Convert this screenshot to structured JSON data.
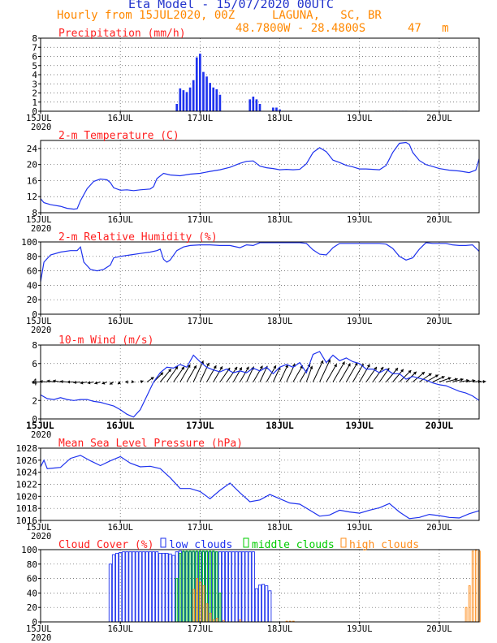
{
  "header": {
    "title": "Eta Model - 15/07/2020 00UTC",
    "subtitle": "Hourly from 15JUL2020, 00Z",
    "location": "LAGUNA,   SC, BR",
    "coords": "48.7800W - 28.4800S",
    "elevation": "47   m",
    "title_color": "#2233cc",
    "subtitle_color": "#ff8800"
  },
  "x_axis": {
    "days": [
      "15JUL",
      "16JUL",
      "17JUL",
      "18JUL",
      "19JUL",
      "20JUL"
    ],
    "year": "2020",
    "range_hours": [
      0,
      132
    ]
  },
  "colors": {
    "blue": "#1e32ee",
    "red": "#ff2020",
    "green": "#00cc00",
    "orange": "#ff8c1a",
    "black": "#000000"
  },
  "chart_data": [
    {
      "type": "bar",
      "title": "Precipitation (mm/h)",
      "ylim": [
        0,
        8
      ],
      "yticks": [
        0,
        1,
        2,
        3,
        4,
        5,
        6,
        7,
        8
      ],
      "x": [
        41,
        42,
        43,
        44,
        45,
        46,
        47,
        48,
        49,
        50,
        51,
        52,
        53,
        54,
        63,
        64,
        65,
        66,
        70,
        71,
        72,
        101,
        102,
        103,
        104,
        105,
        106,
        107,
        108,
        109,
        110
      ],
      "values": [
        0.8,
        2.5,
        2.3,
        2.1,
        2.6,
        3.4,
        5.9,
        6.3,
        4.3,
        3.8,
        3.1,
        2.6,
        2.4,
        1.8,
        1.3,
        1.6,
        1.3,
        0.8,
        0.4,
        0.4,
        0.2,
        0.05,
        0.05,
        0.05,
        0.05,
        0.05,
        0.05,
        0.05,
        0.05,
        0.05,
        0.05
      ]
    },
    {
      "type": "line",
      "title": "2-m Temperature (C)",
      "ylim": [
        8,
        26
      ],
      "yticks": [
        8,
        12,
        16,
        20,
        24
      ],
      "x": [
        0,
        1,
        3,
        6,
        8,
        10,
        11,
        12,
        14,
        16,
        18,
        20,
        21,
        22,
        24,
        26,
        28,
        30,
        33,
        34,
        35,
        37,
        39,
        42,
        45,
        48,
        51,
        54,
        57,
        60,
        62,
        64,
        66,
        68,
        70,
        72,
        74,
        76,
        78,
        80,
        82,
        84,
        86,
        88,
        90,
        92,
        94,
        96,
        98,
        100,
        102,
        104,
        106,
        108,
        110,
        111,
        112,
        114,
        116,
        118,
        120,
        123,
        126,
        129,
        131,
        132
      ],
      "values": [
        11.5,
        10.5,
        10,
        9.6,
        9.1,
        8.9,
        9.0,
        11,
        14,
        15.8,
        16.4,
        16.2,
        15.5,
        14.2,
        13.6,
        13.7,
        13.5,
        13.7,
        13.9,
        14.5,
        16.5,
        17.8,
        17.4,
        17.2,
        17.6,
        17.8,
        18.3,
        18.7,
        19.3,
        20.3,
        20.8,
        20.9,
        19.6,
        19.2,
        19.0,
        18.7,
        18.8,
        18.7,
        18.8,
        20.2,
        23.0,
        24.2,
        23.2,
        21.1,
        20.5,
        19.8,
        19.4,
        18.9,
        18.9,
        18.8,
        18.7,
        19.8,
        23.0,
        25.3,
        25.5,
        25.0,
        23.0,
        21.0,
        20.0,
        19.5,
        19.0,
        18.6,
        18.4,
        18.0,
        18.6,
        21.4
      ]
    },
    {
      "type": "line",
      "title": "2-m Relative Humidity (%)",
      "ylim": [
        0,
        100
      ],
      "yticks": [
        0,
        20,
        40,
        60,
        80,
        100
      ],
      "x": [
        0,
        1,
        3,
        6,
        9,
        11,
        12,
        13,
        15,
        17,
        19,
        21,
        22,
        24,
        27,
        30,
        33,
        35,
        36,
        37,
        38,
        39,
        41,
        43,
        45,
        48,
        51,
        54,
        57,
        60,
        62,
        64,
        66,
        68,
        70,
        72,
        74,
        76,
        78,
        80,
        82,
        84,
        86,
        88,
        90,
        92,
        94,
        96,
        98,
        100,
        102,
        104,
        106,
        108,
        110,
        112,
        114,
        116,
        118,
        120,
        122,
        124,
        126,
        128,
        130,
        132
      ],
      "values": [
        45,
        72,
        82,
        86,
        88,
        88,
        93,
        72,
        62,
        60,
        62,
        68,
        78,
        80,
        82,
        84,
        86,
        88,
        90,
        76,
        72,
        75,
        88,
        93,
        95,
        96,
        96,
        95,
        95,
        92,
        96,
        95,
        99,
        99,
        99,
        99,
        99,
        99,
        99,
        98,
        89,
        83,
        82,
        92,
        98,
        98,
        98,
        98,
        98,
        98,
        98,
        97,
        91,
        80,
        75,
        78,
        90,
        99,
        98,
        98,
        98,
        96,
        95,
        95,
        96,
        87
      ]
    },
    {
      "type": "line",
      "title": "10-m Wind (m/s)",
      "ylim": [
        0,
        8
      ],
      "yticks": [
        0,
        2,
        4,
        6,
        8
      ],
      "x": [
        0,
        2,
        4,
        6,
        8,
        10,
        12,
        14,
        16,
        18,
        20,
        22,
        24,
        26,
        28,
        30,
        32,
        34,
        36,
        38,
        40,
        42,
        44,
        46,
        48,
        50,
        52,
        54,
        56,
        58,
        60,
        62,
        64,
        66,
        68,
        70,
        72,
        74,
        76,
        78,
        80,
        82,
        84,
        86,
        88,
        90,
        92,
        94,
        96,
        98,
        100,
        102,
        104,
        106,
        108,
        110,
        112,
        114,
        116,
        118,
        120,
        122,
        124,
        126,
        128,
        130,
        132
      ],
      "values": [
        2.6,
        2.2,
        2.1,
        2.3,
        2.1,
        2.0,
        2.1,
        2.1,
        1.9,
        1.8,
        1.6,
        1.4,
        1.0,
        0.5,
        0.2,
        1.0,
        2.5,
        4.0,
        5.0,
        5.6,
        5.5,
        5.9,
        5.6,
        6.9,
        6.2,
        5.6,
        5.3,
        5.1,
        5.4,
        5.0,
        5.2,
        5.0,
        5.5,
        5.2,
        5.6,
        4.9,
        5.6,
        5.9,
        5.6,
        6.1,
        5.0,
        7.0,
        7.3,
        6.1,
        6.9,
        6.3,
        6.6,
        6.2,
        6.0,
        5.4,
        5.4,
        5.0,
        5.4,
        4.9,
        4.9,
        4.3,
        4.6,
        4.4,
        4.2,
        3.9,
        3.7,
        3.6,
        3.3,
        3.0,
        2.8,
        2.5,
        2.0
      ],
      "vectors": {
        "x": [
          0,
          2,
          4,
          6,
          8,
          10,
          12,
          14,
          16,
          18,
          20,
          22,
          24,
          26,
          28,
          30,
          32,
          34,
          36,
          38,
          40,
          42,
          44,
          46,
          48,
          50,
          52,
          54,
          56,
          58,
          60,
          62,
          64,
          66,
          68,
          70,
          72,
          74,
          76,
          78,
          80,
          82,
          84,
          86,
          88,
          90,
          92,
          94,
          96,
          98,
          100,
          102,
          104,
          106,
          108,
          110,
          112,
          114,
          116,
          118,
          120,
          122,
          124,
          126,
          128,
          130,
          132
        ],
        "speed": [
          2.6,
          2.2,
          2.1,
          2.3,
          2.1,
          2.0,
          2.1,
          2.1,
          1.9,
          1.8,
          1.6,
          1.4,
          1.0,
          0.5,
          0.2,
          1.0,
          2.5,
          4.0,
          5.0,
          5.6,
          5.5,
          5.9,
          5.6,
          6.9,
          6.2,
          5.6,
          5.3,
          5.1,
          5.4,
          5.0,
          5.2,
          5.0,
          5.5,
          5.2,
          5.6,
          4.9,
          5.6,
          5.9,
          5.6,
          6.1,
          5.0,
          7.0,
          7.3,
          6.1,
          6.9,
          6.3,
          6.6,
          6.2,
          6.0,
          5.4,
          5.4,
          5.0,
          5.4,
          4.9,
          4.9,
          4.3,
          4.6,
          4.4,
          4.2,
          3.9,
          3.7,
          3.6,
          3.3,
          3.0,
          2.8,
          2.5,
          2.0
        ],
        "direction_deg": [
          90,
          95,
          100,
          100,
          95,
          90,
          85,
          80,
          80,
          75,
          70,
          60,
          50,
          330,
          280,
          250,
          235,
          225,
          220,
          215,
          215,
          210,
          210,
          205,
          205,
          210,
          210,
          215,
          215,
          210,
          210,
          205,
          210,
          205,
          210,
          205,
          205,
          205,
          210,
          210,
          200,
          205,
          205,
          210,
          210,
          210,
          210,
          210,
          210,
          215,
          215,
          215,
          220,
          220,
          225,
          225,
          230,
          235,
          240,
          245,
          250,
          255,
          255,
          260,
          260,
          265,
          265
        ]
      }
    },
    {
      "type": "line",
      "title": "Mean Sea Level Pressure (hPa)",
      "ylim": [
        1016,
        1028
      ],
      "yticks": [
        1016,
        1018,
        1020,
        1022,
        1024,
        1026,
        1028
      ],
      "x": [
        0,
        1,
        2,
        4,
        6,
        9,
        12,
        15,
        18,
        21,
        24,
        27,
        30,
        33,
        36,
        39,
        42,
        45,
        48,
        51,
        54,
        57,
        60,
        63,
        66,
        69,
        72,
        75,
        78,
        81,
        84,
        87,
        90,
        93,
        96,
        99,
        102,
        105,
        108,
        111,
        114,
        117,
        120,
        123,
        126,
        129,
        132
      ],
      "values": [
        1024.9,
        1026,
        1024.6,
        1024.7,
        1024.8,
        1026.3,
        1026.8,
        1025.9,
        1025.1,
        1025.9,
        1026.6,
        1025.5,
        1024.9,
        1025.0,
        1024.6,
        1023.1,
        1021.3,
        1021.3,
        1020.8,
        1019.6,
        1021.0,
        1022.2,
        1020.6,
        1019.1,
        1019.4,
        1020.3,
        1019.6,
        1018.9,
        1018.7,
        1017.7,
        1016.7,
        1016.9,
        1017.7,
        1017.4,
        1017.2,
        1017.7,
        1018.1,
        1018.8,
        1017.4,
        1016.3,
        1016.5,
        1017.0,
        1016.8,
        1016.5,
        1016.4,
        1017.1,
        1017.6
      ]
    },
    {
      "type": "bar",
      "title": "Cloud Cover (%)",
      "ylim": [
        0,
        100
      ],
      "yticks": [
        0,
        20,
        40,
        60,
        80,
        100
      ],
      "legend": [
        "low clouds",
        "middle clouds",
        "high clouds"
      ],
      "series": [
        {
          "name": "low clouds",
          "x": [
            21,
            22,
            23,
            24,
            25,
            26,
            27,
            28,
            29,
            30,
            31,
            32,
            33,
            34,
            35,
            36,
            37,
            38,
            39,
            40,
            41,
            42,
            43,
            44,
            45,
            46,
            47,
            48,
            49,
            50,
            51,
            52,
            53,
            54,
            55,
            56,
            57,
            58,
            59,
            60,
            61,
            62,
            63,
            64,
            65,
            66,
            67,
            68,
            69
          ],
          "values": [
            80,
            93,
            95,
            96,
            97,
            97,
            97,
            97,
            97,
            97,
            97,
            97,
            97,
            97,
            97,
            95,
            95,
            95,
            94,
            92,
            97,
            98,
            97,
            97,
            97,
            97,
            97,
            97,
            97,
            97,
            97,
            97,
            97,
            97,
            97,
            97,
            97,
            97,
            97,
            97,
            97,
            97,
            97,
            97,
            46,
            51,
            52,
            50,
            43
          ]
        },
        {
          "name": "middle clouds",
          "x": [
            41,
            42,
            43,
            44,
            45,
            46,
            47,
            48,
            49,
            50,
            51,
            52,
            53,
            54
          ],
          "values": [
            60,
            95,
            98,
            98,
            98,
            98,
            98,
            98,
            98,
            98,
            98,
            98,
            97,
            40
          ]
        },
        {
          "name": "high clouds",
          "x": [
            46,
            47,
            48,
            49,
            50,
            51,
            52,
            53,
            55,
            60,
            74,
            75,
            76,
            128,
            129,
            130,
            131,
            132
          ],
          "values": [
            45,
            60,
            55,
            50,
            25,
            12,
            3,
            5,
            2,
            3,
            1,
            1,
            1,
            20,
            50,
            98,
            99,
            98
          ]
        }
      ]
    }
  ]
}
